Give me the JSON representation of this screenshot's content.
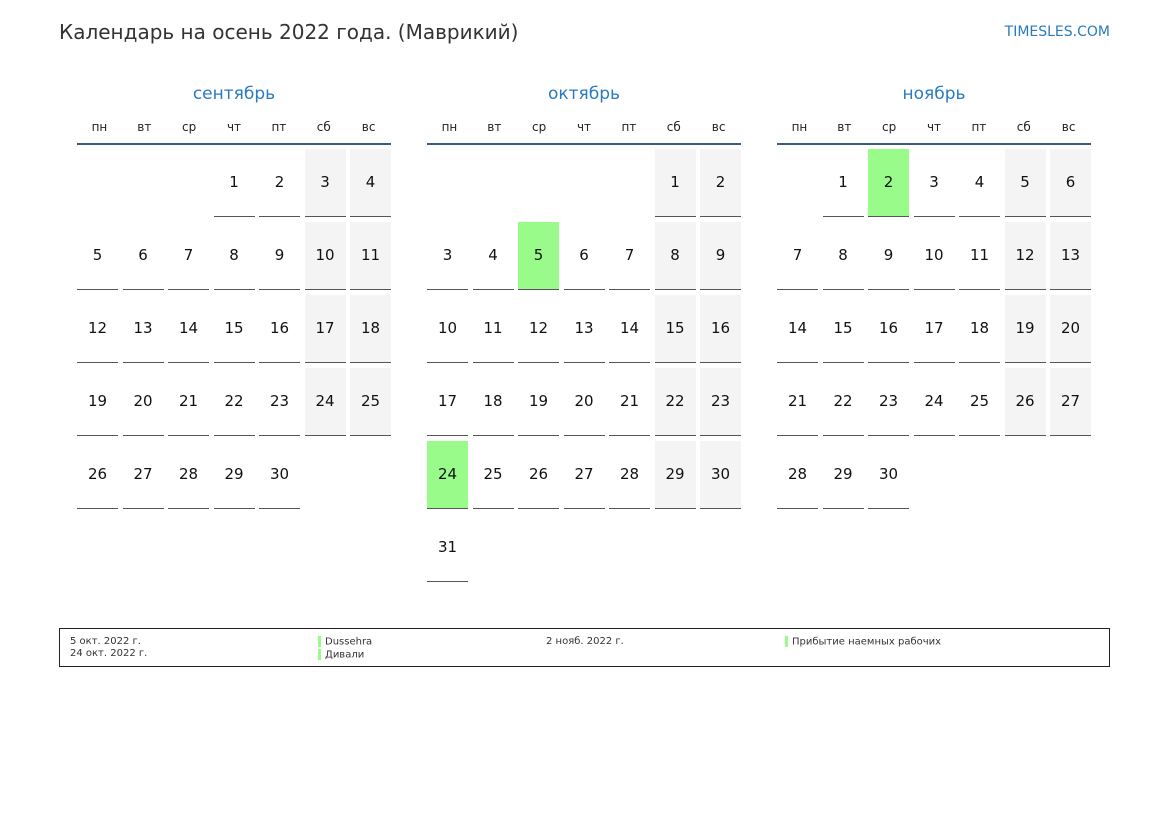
{
  "title": "Календарь на осень 2022 года. (Маврикий)",
  "site": "TIMESLES.COM",
  "colors": {
    "accent": "#2a7ac0",
    "holiday": "#98fb8a",
    "weekend": "#f4f4f4"
  },
  "weekdays": [
    "пн",
    "вт",
    "ср",
    "чт",
    "пт",
    "сб",
    "вс"
  ],
  "months": [
    {
      "name": "сентябрь",
      "first_weekday": "чт",
      "days": 30,
      "holidays": []
    },
    {
      "name": "октябрь",
      "first_weekday": "сб",
      "days": 31,
      "holidays": [
        5,
        24
      ]
    },
    {
      "name": "ноябрь",
      "first_weekday": "вт",
      "days": 30,
      "holidays": [
        2
      ]
    }
  ],
  "legend": {
    "col1_dates": [
      "5 окт. 2022 г.",
      "24 окт. 2022 г."
    ],
    "col1_names": [
      "Dussehra",
      "Дивали"
    ],
    "col2_dates": [
      "2 нояб. 2022 г."
    ],
    "col2_names": [
      "Прибытие наемных рабочих"
    ]
  }
}
